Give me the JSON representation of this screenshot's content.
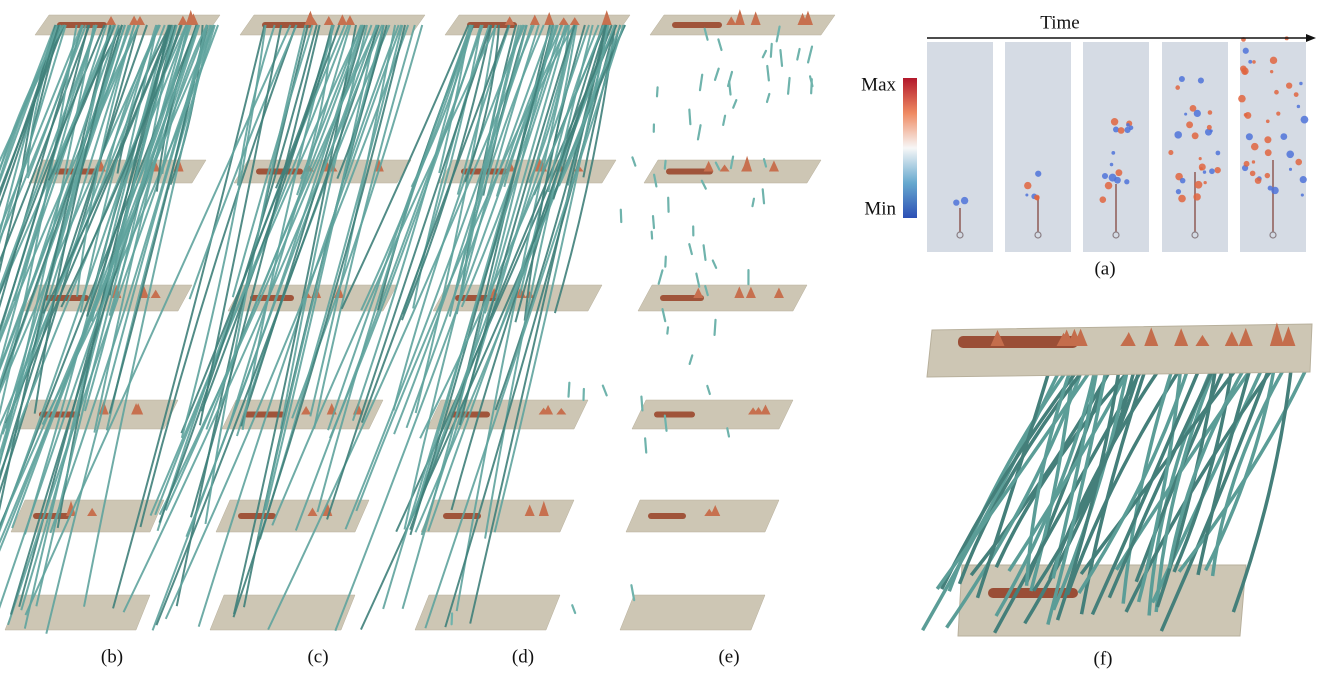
{
  "time_label": "Time",
  "colorbar": {
    "max_label": "Max",
    "min_label": "Min"
  },
  "captions": [
    "(a)",
    "(b)",
    "(c)",
    "(d)",
    "(e)",
    "(f)"
  ]
}
